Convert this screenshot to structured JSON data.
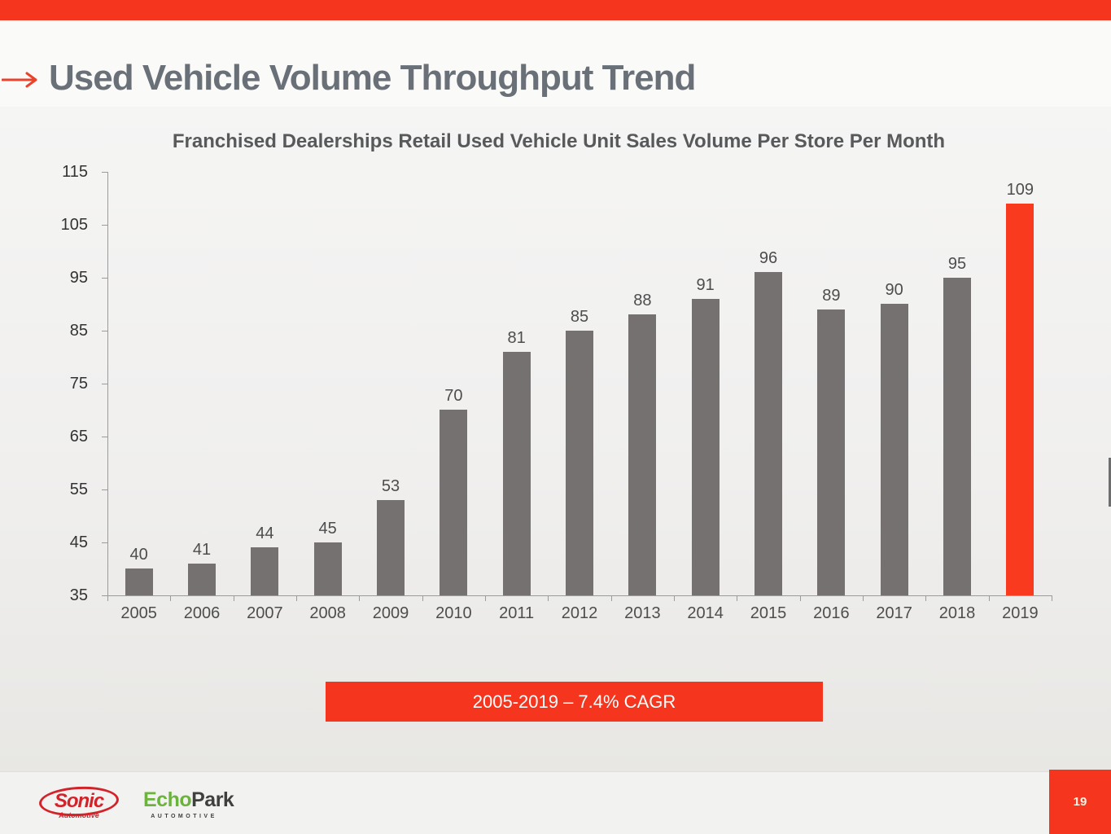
{
  "slide": {
    "title": "Used Vehicle Volume Throughput Trend",
    "page_number": "19"
  },
  "chart_data": {
    "type": "bar",
    "title": "Franchised Dealerships Retail Used Vehicle Unit Sales Volume Per Store Per Month",
    "categories": [
      "2005",
      "2006",
      "2007",
      "2008",
      "2009",
      "2010",
      "2011",
      "2012",
      "2013",
      "2014",
      "2015",
      "2016",
      "2017",
      "2018",
      "2019"
    ],
    "values": [
      40,
      41,
      44,
      45,
      53,
      70,
      81,
      85,
      88,
      91,
      96,
      89,
      90,
      95,
      109
    ],
    "xlabel": "",
    "ylabel": "",
    "ylim": [
      35,
      115
    ],
    "ytick_interval": 10,
    "yticks": [
      35,
      45,
      55,
      65,
      75,
      85,
      95,
      105,
      115
    ],
    "grid": false,
    "legend": false,
    "data_labels": true,
    "highlight_category": "2019",
    "bar_color_default": "#767171",
    "bar_color_highlight": "#FA3A1E"
  },
  "banner": {
    "label": "2005-2019 – 7.4% CAGR",
    "color": "#F5351E"
  },
  "footer": {
    "sonic": {
      "name": "Sonic",
      "subtext": "Automotive"
    },
    "echopark": {
      "echo": "Echo",
      "park": "Park",
      "subtext": "AUTOMOTIVE"
    }
  },
  "colors": {
    "accent_red": "#F5351E",
    "bar_gray": "#767171",
    "bar_highlight_red": "#FA3A1E",
    "title_gray": "#6A7078",
    "chart_text": "#4D4D4D",
    "axis_gray": "#9B9B9B",
    "sonic_red": "#D2232A",
    "echopark_green": "#6CB33E"
  }
}
